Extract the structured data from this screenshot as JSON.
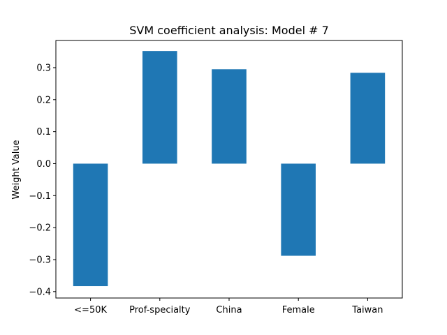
{
  "chart_data": {
    "type": "bar",
    "title": "SVM coefficient analysis: Model # 7",
    "xlabel": "",
    "ylabel": "Weight Value",
    "categories": [
      "<=50K",
      "Prof-specialty",
      "China",
      "Female",
      "Taiwan"
    ],
    "values": [
      -0.383,
      0.352,
      0.295,
      -0.288,
      0.284
    ],
    "ylim": [
      -0.42,
      0.385
    ],
    "yticks": [
      -0.4,
      -0.3,
      -0.2,
      -0.1,
      0.0,
      0.1,
      0.2,
      0.3
    ],
    "ytick_labels": [
      "−0.4",
      "−0.3",
      "−0.2",
      "−0.1",
      "0.0",
      "0.1",
      "0.2",
      "0.3"
    ],
    "bar_color": "#1f77b4",
    "grid": false,
    "legend": "none"
  }
}
